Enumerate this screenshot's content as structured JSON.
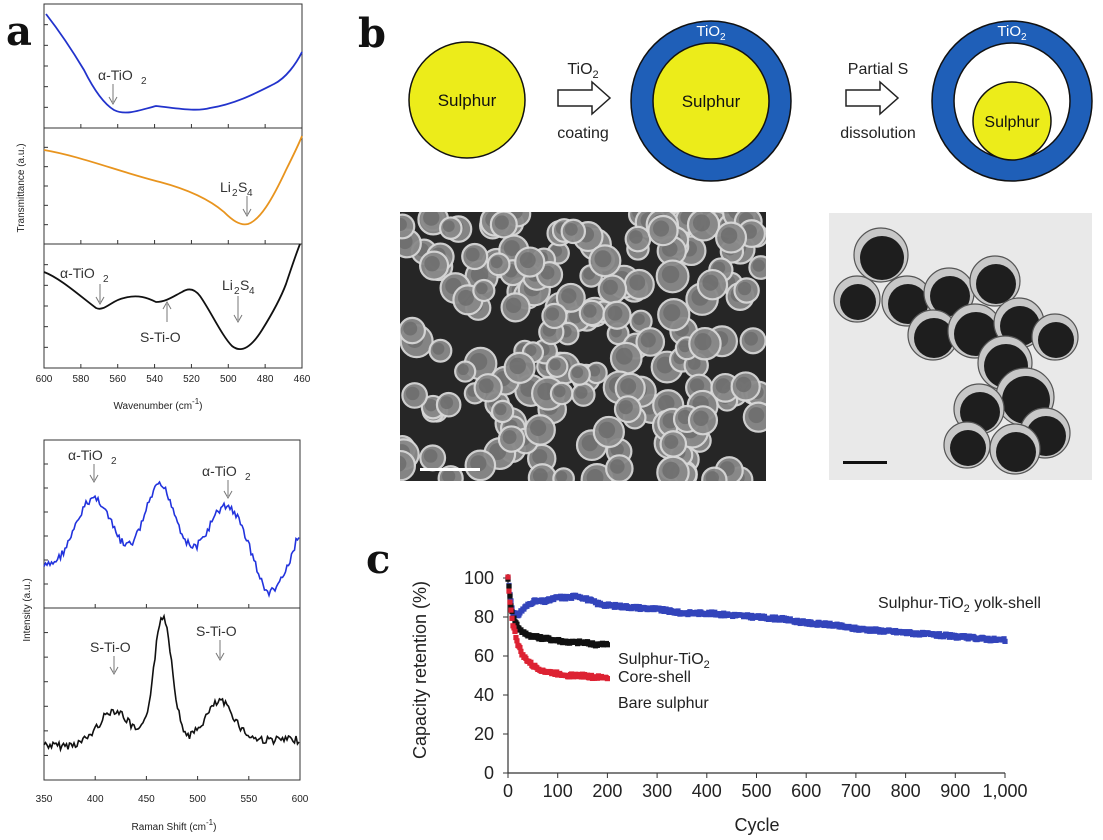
{
  "panels": {
    "a": "a",
    "b": "b",
    "c": "c"
  },
  "panel_a": {
    "ftir": {
      "ylabel": "Transmittance (a.u.)",
      "xlabel_main": "Wavenumber (cm",
      "xlabel_sup": "-1",
      "xlabel_end": ")",
      "xticks": [
        "600",
        "580",
        "560",
        "540",
        "520",
        "500",
        "480",
        "460"
      ],
      "annotations": {
        "top_tio2": "α-TiO",
        "mid_li2s4_a": "Li",
        "mid_li2s4_b": "S",
        "bot_tio2": "α-TiO",
        "bot_stio": "S-Ti-O",
        "bot_li2s4_a": "Li",
        "bot_li2s4_b": "S"
      },
      "sub2": "2",
      "sub4": "4",
      "colors": {
        "top": "#2233cc",
        "middle": "#e8941e",
        "bottom": "#111111"
      }
    },
    "raman": {
      "ylabel": "Intensity (a.u.)",
      "xlabel_main": "Raman Shift (cm",
      "xlabel_sup": "-1",
      "xlabel_end": ")",
      "xticks": [
        "350",
        "400",
        "450",
        "500",
        "550",
        "600"
      ],
      "annotations": {
        "tio2_left": "α-TiO",
        "tio2_right": "α-TiO",
        "stio_left": "S-Ti-O",
        "stio_right": "S-Ti-O"
      },
      "colors": {
        "top": "#2233dd",
        "bottom": "#111111"
      }
    }
  },
  "panel_b": {
    "sulphur": "Sulphur",
    "tio2": "TiO",
    "tio2_sub": "2",
    "arrow1_top": "TiO",
    "arrow1_top_sub": "2",
    "arrow1_bottom": "coating",
    "arrow2_top": "Partial S",
    "arrow2_bottom": "dissolution",
    "colors": {
      "sulphur": "#ecec1a",
      "shell": "#1f5fb8",
      "shell_text": "#ffffff"
    }
  },
  "chart_data": {
    "type": "scatter",
    "xlabel": "Cycle",
    "ylabel": "Capacity retention (%)",
    "xlim": [
      0,
      1000
    ],
    "ylim": [
      0,
      100
    ],
    "xticks": [
      "0",
      "100",
      "200",
      "300",
      "400",
      "500",
      "600",
      "700",
      "800",
      "900",
      "1,000"
    ],
    "yticks": [
      "0",
      "20",
      "40",
      "60",
      "80",
      "100"
    ],
    "series": [
      {
        "name": "Sulphur-TiO2 yolk-shell",
        "color": "#3344bb",
        "label": "Sulphur-TiO",
        "label_sub": "2",
        "label_end": " yolk-shell",
        "x": [
          0,
          5,
          10,
          20,
          30,
          50,
          75,
          100,
          125,
          140,
          160,
          180,
          200,
          250,
          300,
          350,
          400,
          450,
          500,
          550,
          600,
          650,
          700,
          750,
          800,
          850,
          900,
          950,
          1000
        ],
        "y": [
          100,
          90,
          82,
          81,
          84,
          88,
          88,
          90,
          90,
          91,
          89,
          87,
          86,
          85,
          84,
          82,
          82,
          81,
          80,
          79,
          77,
          76,
          74,
          73,
          72,
          71,
          70,
          69,
          68
        ]
      },
      {
        "name": "Sulphur-TiO2 Core-shell",
        "color": "#111111",
        "label": "Sulphur-TiO",
        "label_sub": "2",
        "label_line2": "Core-shell",
        "x": [
          0,
          5,
          10,
          20,
          30,
          50,
          75,
          100,
          125,
          150,
          175,
          200
        ],
        "y": [
          100,
          88,
          80,
          75,
          72,
          70,
          69,
          68,
          67,
          67,
          66,
          66
        ]
      },
      {
        "name": "Bare sulphur",
        "color": "#dd2233",
        "label": "Bare sulphur",
        "x": [
          0,
          5,
          10,
          20,
          30,
          50,
          75,
          100,
          125,
          150,
          175,
          200
        ],
        "y": [
          100,
          85,
          76,
          66,
          60,
          55,
          52,
          51,
          50,
          50,
          49,
          49
        ]
      }
    ]
  }
}
